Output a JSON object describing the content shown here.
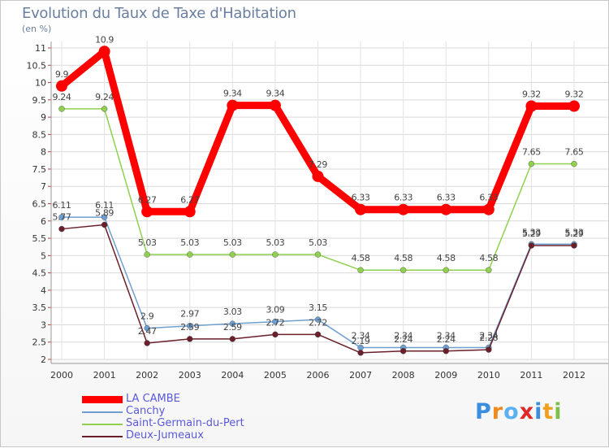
{
  "chart_data": {
    "type": "line",
    "title": "Evolution du Taux de Taxe d'Habitation",
    "ylabel": "(en %)",
    "xlabel": "",
    "x": [
      "2000",
      "2001",
      "2002",
      "2003",
      "2004",
      "2005",
      "2006",
      "2007",
      "2008",
      "2009",
      "2010",
      "2011",
      "2012"
    ],
    "ylim": [
      2,
      11
    ],
    "yticks": [
      "2",
      "2.5",
      "3",
      "3.5",
      "4",
      "4.5",
      "5",
      "5.5",
      "6",
      "6.5",
      "7",
      "7.5",
      "8",
      "8.5",
      "9",
      "9.5",
      "10",
      "10.5",
      "11"
    ],
    "grid": true,
    "series": [
      {
        "name": "LA CAMBE",
        "color": "#ff0000",
        "values": [
          9.9,
          10.9,
          6.27,
          6.27,
          9.34,
          9.34,
          7.29,
          6.33,
          6.33,
          6.33,
          6.33,
          9.32,
          9.32
        ],
        "labels": [
          "9.9",
          "10.9",
          "6.27",
          "6.27",
          "9.34",
          "9.34",
          "7.29",
          "6.33",
          "6.33",
          "6.33",
          "6.33",
          "9.32",
          "9.32"
        ]
      },
      {
        "name": "Canchy",
        "color": "#6f9fd0",
        "values": [
          6.11,
          6.11,
          2.9,
          2.97,
          3.03,
          3.09,
          3.15,
          2.34,
          2.34,
          2.34,
          2.34,
          5.33,
          5.33
        ],
        "labels": [
          "6.11",
          "6.11",
          "2.9",
          "2.97",
          "3.03",
          "3.09",
          "3.15",
          "2.34",
          "2.34",
          "2.34",
          "2.34",
          "5.33",
          "5.33"
        ]
      },
      {
        "name": "Saint-Germain-du-Pert",
        "color": "#8fd04f",
        "values": [
          9.24,
          9.24,
          5.03,
          5.03,
          5.03,
          5.03,
          5.03,
          4.58,
          4.58,
          4.58,
          4.58,
          7.65,
          7.65
        ],
        "labels": [
          "9.24",
          "9.24",
          "5.03",
          "5.03",
          "5.03",
          "5.03",
          "5.03",
          "4.58",
          "4.58",
          "4.58",
          "4.58",
          "7.65",
          "7.65"
        ]
      },
      {
        "name": "Deux-Jumeaux",
        "color": "#6b1f2a",
        "values": [
          5.77,
          5.89,
          2.47,
          2.59,
          2.59,
          2.72,
          2.72,
          2.19,
          2.24,
          2.24,
          2.28,
          5.29,
          5.29
        ],
        "labels": [
          "5.77",
          "5.89",
          "2.47",
          "2.59",
          "2.59",
          "2.72",
          "2.72",
          "2.19",
          "2.24",
          "2.24",
          "2.28",
          "5.29",
          "5.29"
        ]
      }
    ],
    "legend": "bottom-left"
  },
  "logo": {
    "text": "Proxiti",
    "colors": [
      "#3a8ee0",
      "#f08a1c",
      "#5ab0f0",
      "#e02828",
      "#3a8ee0",
      "#f0a020",
      "#7ac04a"
    ]
  }
}
